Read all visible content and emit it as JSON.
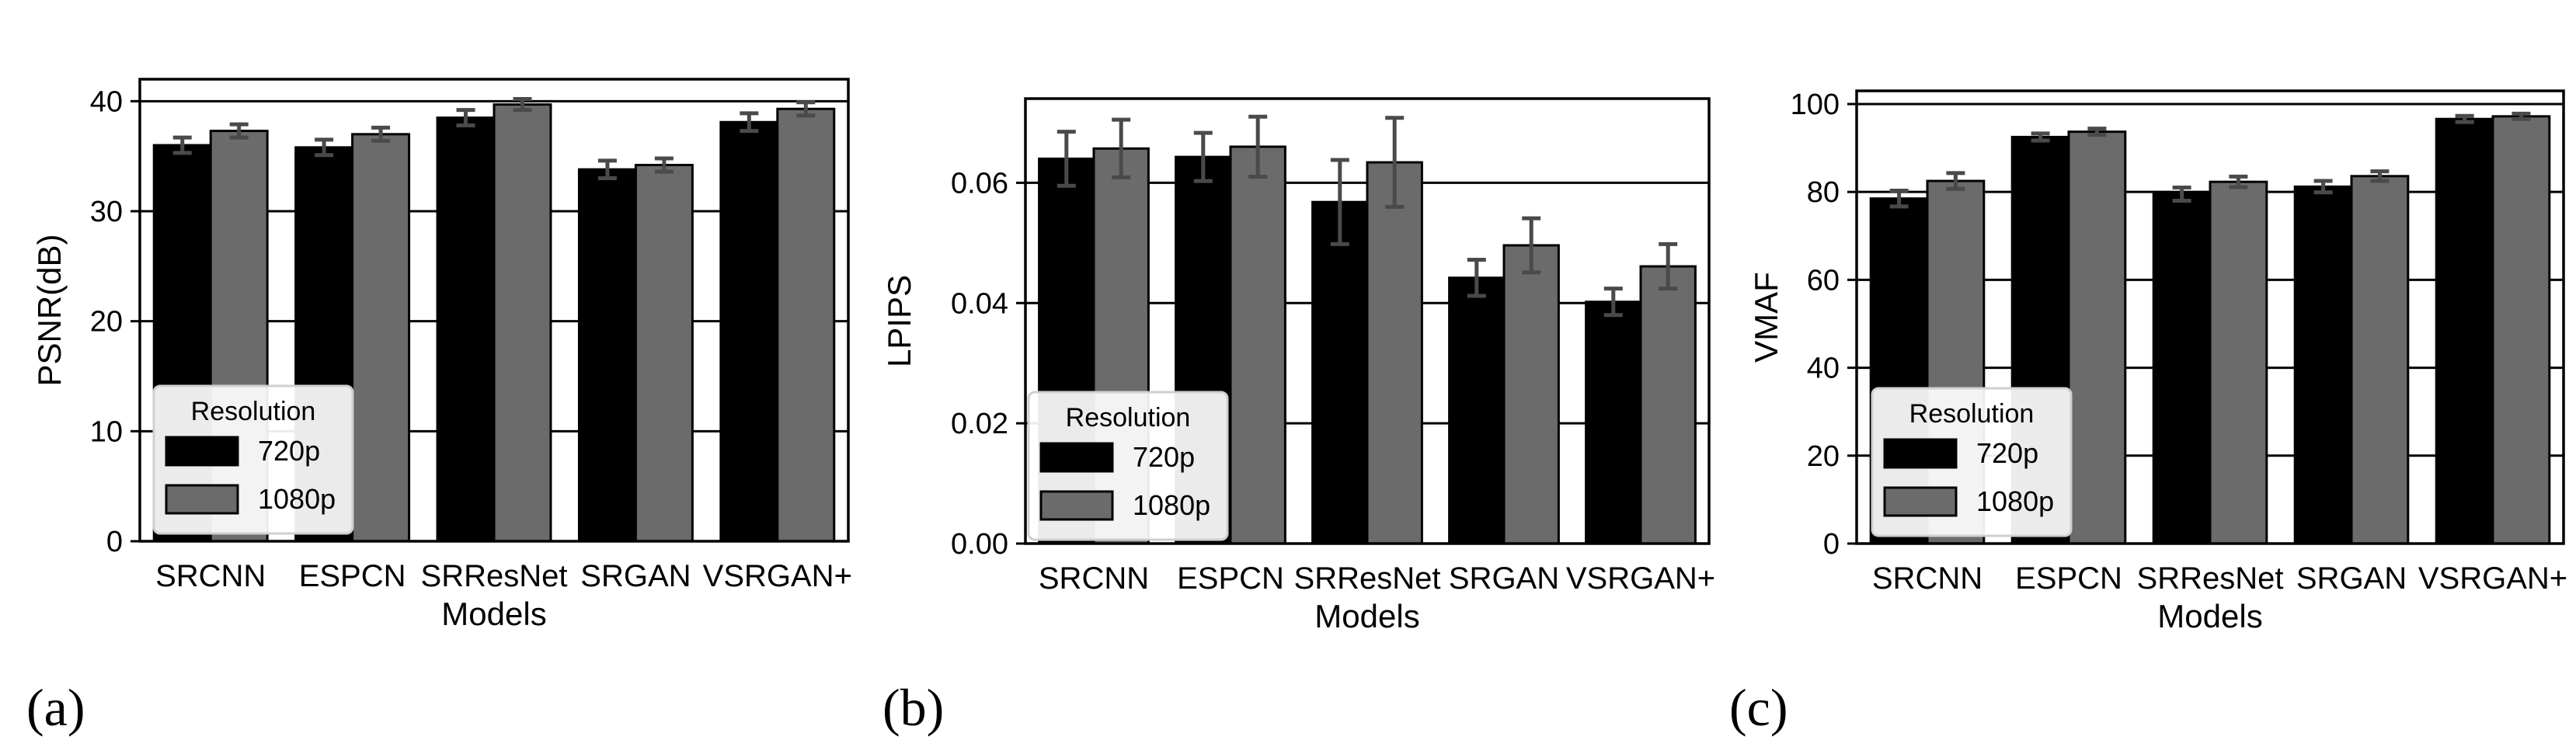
{
  "colors": {
    "series_720": "#000000",
    "series_1080": "#6b6b6b",
    "error": "#4a4a4a",
    "frame": "#000000"
  },
  "panels": [
    "(a)",
    "(b)",
    "(c)"
  ],
  "chart_data": [
    {
      "type": "bar",
      "title": "",
      "xlabel": "Models",
      "ylabel": "PSNR(dB)",
      "categories": [
        "SRCNN",
        "ESPCN",
        "SRResNet",
        "SRGAN",
        "VSRGAN+"
      ],
      "ylim": [
        0,
        42
      ],
      "yticks": [
        0,
        10,
        20,
        30,
        40
      ],
      "grid": "horizontal",
      "legend_title": "Resolution",
      "legend_position": "lower-left",
      "series": [
        {
          "name": "720p",
          "values": [
            36.0,
            35.8,
            38.5,
            33.8,
            38.1
          ],
          "errors": [
            0.7,
            0.7,
            0.7,
            0.8,
            0.8
          ]
        },
        {
          "name": "1080p",
          "values": [
            37.3,
            37.0,
            39.7,
            34.2,
            39.3
          ],
          "errors": [
            0.6,
            0.6,
            0.5,
            0.6,
            0.6
          ]
        }
      ]
    },
    {
      "type": "bar",
      "title": "",
      "xlabel": "Models",
      "ylabel": "LPIPS",
      "categories": [
        "SRCNN",
        "ESPCN",
        "SRResNet",
        "SRGAN",
        "VSRGAN+"
      ],
      "ylim": [
        0,
        0.074
      ],
      "yticks": [
        "0.00",
        "0.02",
        "0.04",
        "0.06"
      ],
      "grid": "horizontal",
      "legend_title": "Resolution",
      "legend_position": "lower-left",
      "series": [
        {
          "name": "720p",
          "values": [
            0.064,
            0.0643,
            0.0568,
            0.0442,
            0.0402
          ],
          "errors": [
            0.0045,
            0.004,
            0.007,
            0.003,
            0.0022
          ]
        },
        {
          "name": "1080p",
          "values": [
            0.0657,
            0.066,
            0.0634,
            0.0496,
            0.0461
          ],
          "errors": [
            0.0048,
            0.005,
            0.0074,
            0.0045,
            0.0037
          ]
        }
      ]
    },
    {
      "type": "bar",
      "title": "",
      "xlabel": "Models",
      "ylabel": "VMAF",
      "categories": [
        "SRCNN",
        "ESPCN",
        "SRResNet",
        "SRGAN",
        "VSRGAN+"
      ],
      "ylim": [
        0,
        103
      ],
      "yticks": [
        0,
        20,
        40,
        60,
        80,
        100
      ],
      "grid": "horizontal",
      "legend_title": "Resolution",
      "legend_position": "lower-left",
      "series": [
        {
          "name": "720p",
          "values": [
            78.5,
            92.5,
            79.5,
            81.2,
            96.6
          ],
          "errors": [
            1.8,
            0.8,
            1.5,
            1.3,
            0.7
          ]
        },
        {
          "name": "1080p",
          "values": [
            82.5,
            93.7,
            82.3,
            83.6,
            97.2
          ],
          "errors": [
            1.8,
            0.7,
            1.2,
            1.1,
            0.6
          ]
        }
      ]
    }
  ]
}
